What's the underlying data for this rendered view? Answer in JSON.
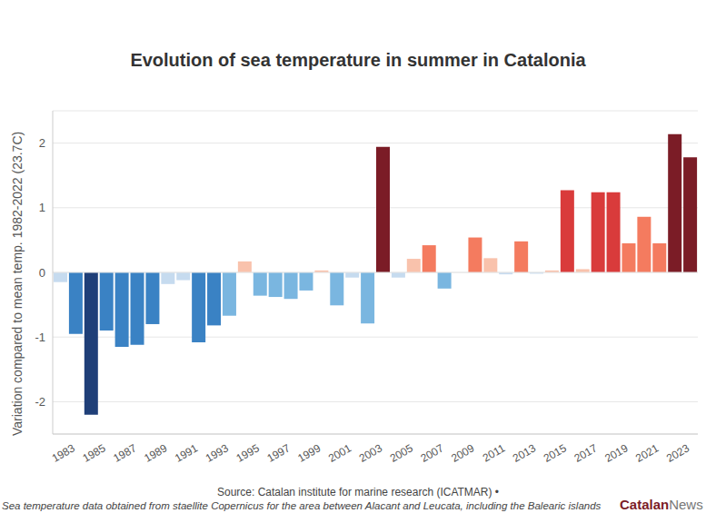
{
  "chart_data": {
    "type": "bar",
    "title": "Evolution of sea temperature in summer in Catalonia",
    "y_label": "Variation compared to mean temp. 1982-2022 (23.7C)",
    "source": "Source: Catalan institute for marine research (ICATMAR) •",
    "note": "Sea temperature data obtained from staellite Copernicus for the area between Alacant and Leucata, including the Balearic islands",
    "logo": [
      "Catalan",
      "News"
    ],
    "categories": [
      null,
      "1983",
      null,
      "1985",
      null,
      "1987",
      null,
      "1989",
      null,
      "1991",
      null,
      "1993",
      null,
      "1995",
      null,
      "1997",
      null,
      "1999",
      null,
      "2001",
      null,
      "2003",
      null,
      "2005",
      null,
      "2007",
      null,
      "2009",
      null,
      "2011",
      null,
      "2013",
      null,
      "2015",
      null,
      "2017",
      null,
      "2019",
      null,
      "2021",
      null,
      "2023"
    ],
    "values": [
      -0.15,
      -0.95,
      -2.2,
      -0.9,
      -1.15,
      -1.12,
      -0.8,
      -0.18,
      -0.12,
      -1.08,
      -0.82,
      -0.67,
      0.17,
      -0.36,
      -0.38,
      -0.41,
      -0.28,
      0.03,
      -0.51,
      -0.08,
      -0.79,
      1.94,
      -0.08,
      0.21,
      0.42,
      -0.25,
      0,
      0.54,
      0.22,
      -0.03,
      0.48,
      -0.02,
      0.03,
      1.27,
      0.05,
      1.24,
      1.24,
      0.45,
      0.86,
      0.45,
      2.14,
      1.78
    ],
    "colors": [
      "#c6dbef",
      "#3a82c4",
      "#1f3f78",
      "#3a82c4",
      "#3a82c4",
      "#3a82c4",
      "#3a82c4",
      "#c6dbef",
      "#c6dbef",
      "#3a82c4",
      "#3a82c4",
      "#7ab6e0",
      "#f9c2ac",
      "#7ab6e0",
      "#7ab6e0",
      "#7ab6e0",
      "#7ab6e0",
      "#f9c2ac",
      "#7ab6e0",
      "#c6dbef",
      "#7ab6e0",
      "#7b1c26",
      "#c6dbef",
      "#f9c2ac",
      "#f47b5f",
      "#7ab6e0",
      "#f9c2ac",
      "#f47b5f",
      "#f9c2ac",
      "#c6dbef",
      "#f47b5f",
      "#c6dbef",
      "#f9c2ac",
      "#d93b3b",
      "#f9c2ac",
      "#d93b3b",
      "#d93b3b",
      "#f47b5f",
      "#f47b5f",
      "#f47b5f",
      "#7b1c26",
      "#7b1c26"
    ],
    "ylim": [
      -2.5,
      2.5
    ],
    "yticks": [
      -2,
      -1,
      0,
      1,
      2
    ],
    "grid": true
  }
}
